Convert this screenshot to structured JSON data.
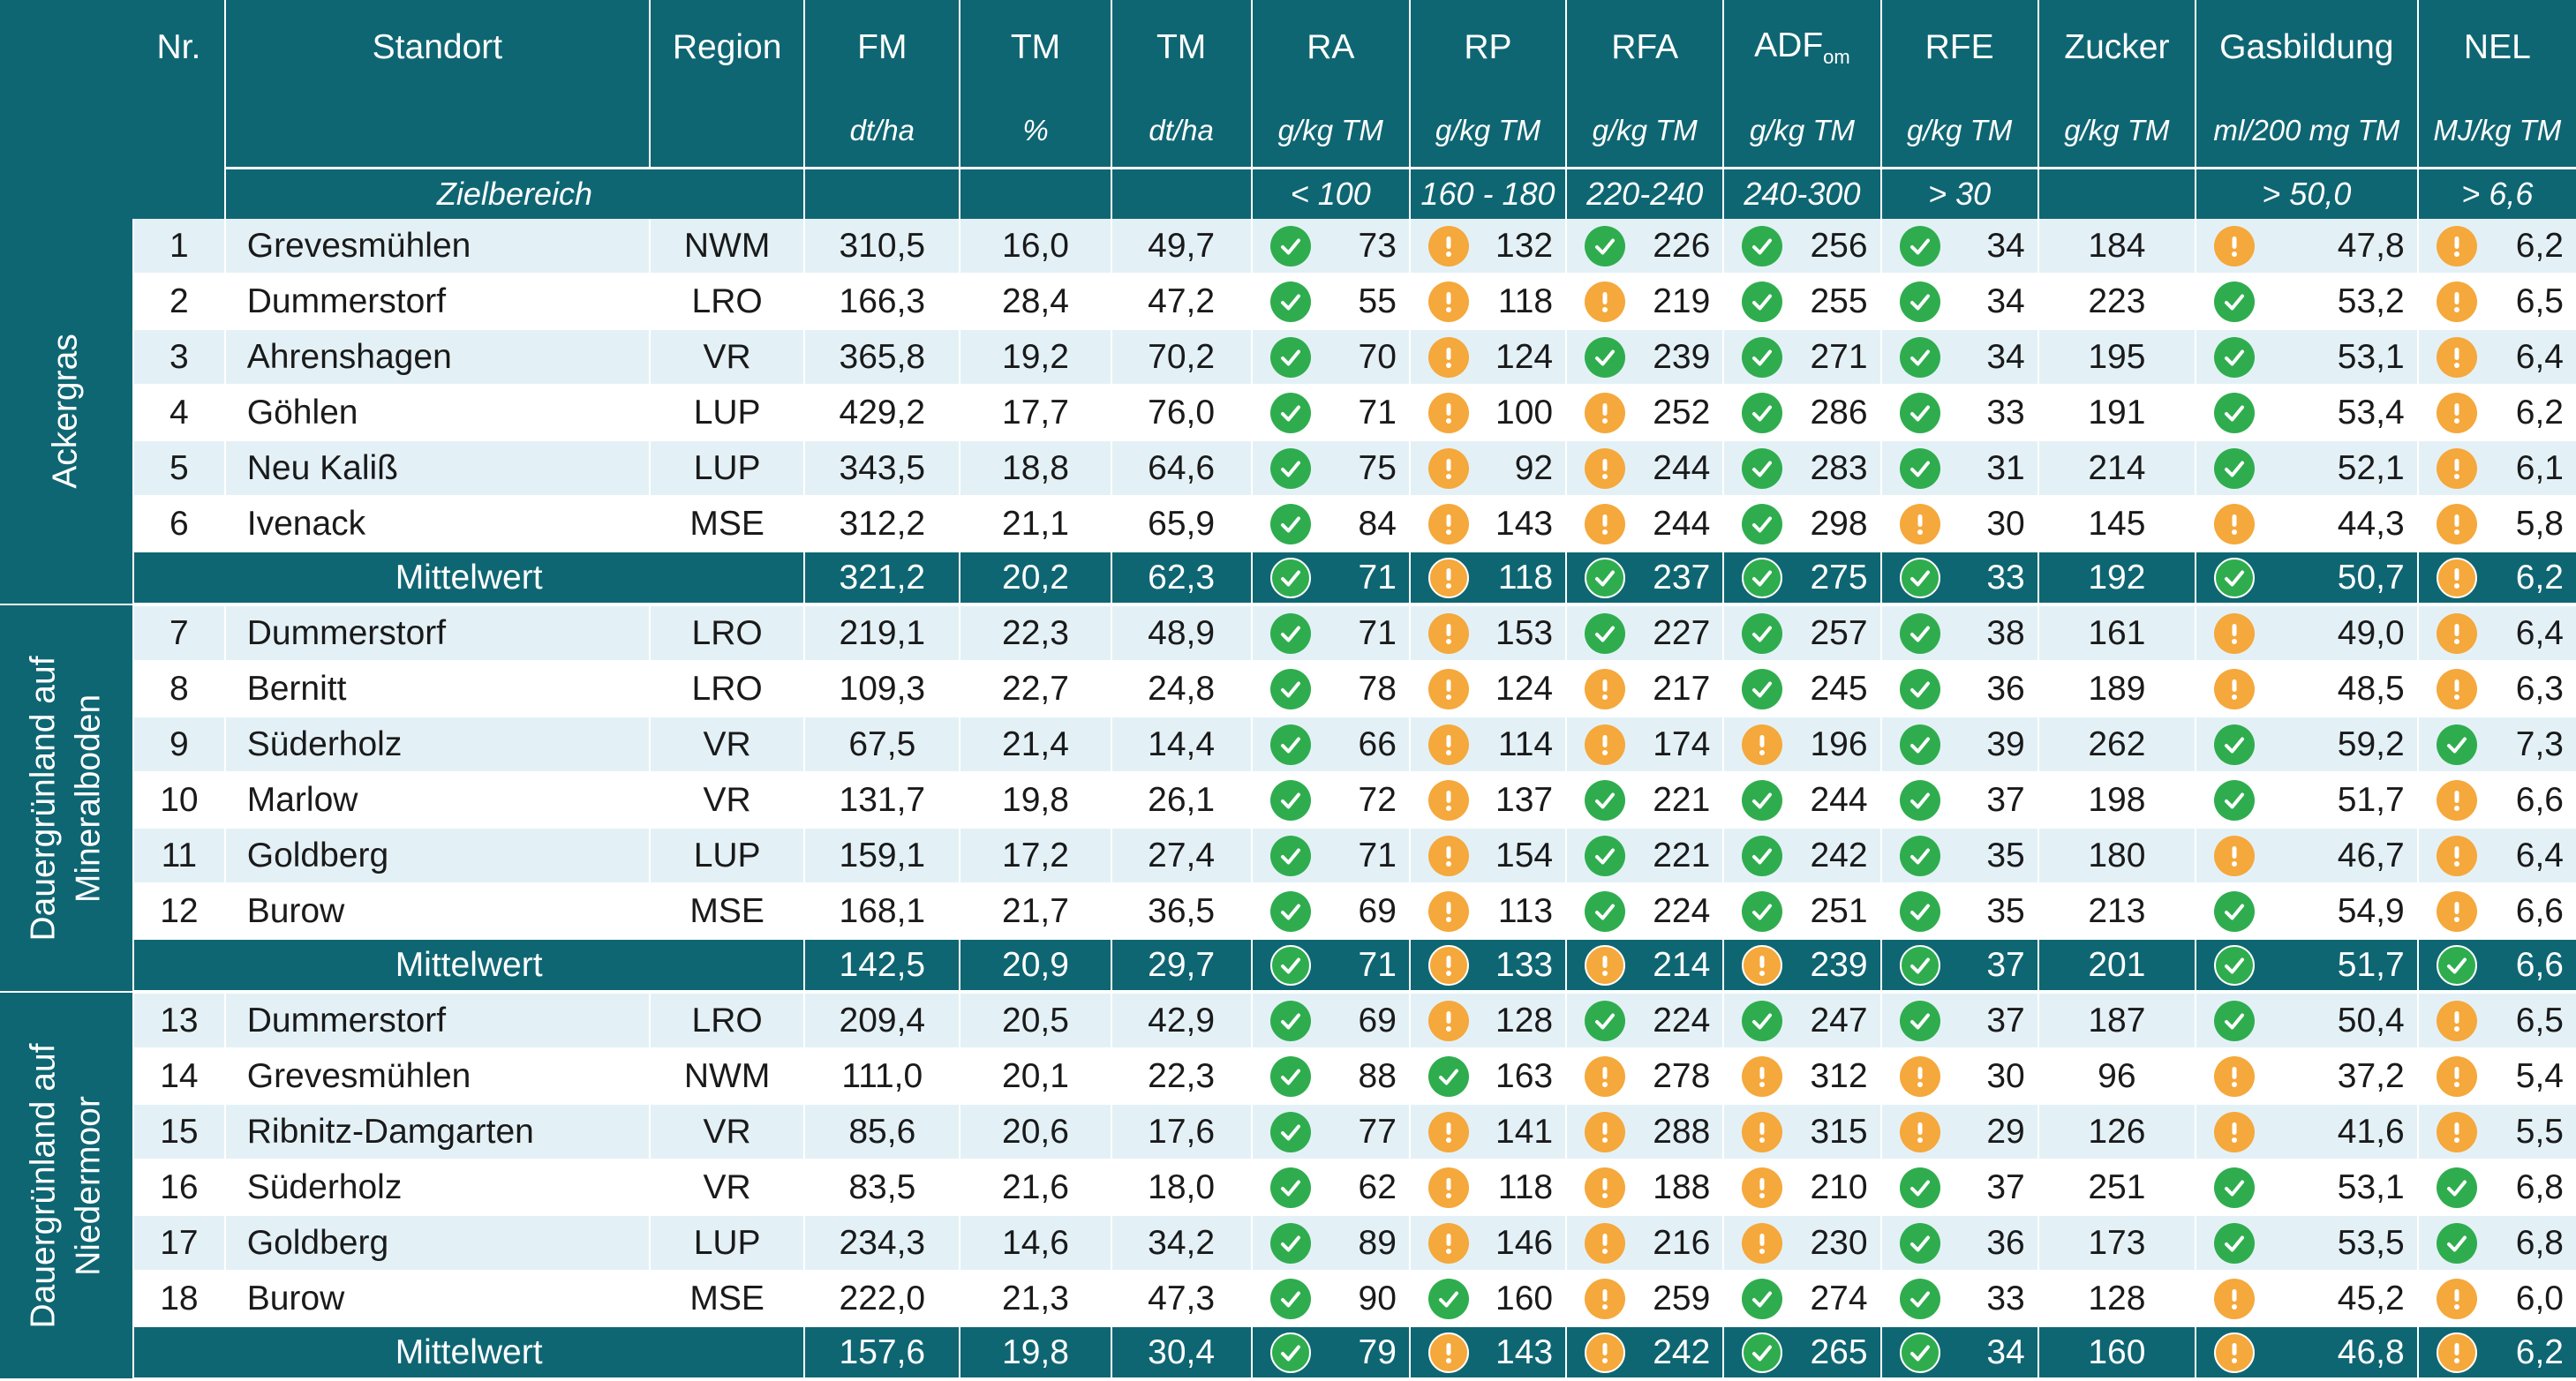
{
  "headers": {
    "nr": "Nr.",
    "standort": "Standort",
    "region": "Region",
    "cols": [
      {
        "name": "FM",
        "sub": "",
        "unit": "dt/ha",
        "target": ""
      },
      {
        "name": "TM",
        "sub": "",
        "unit": "%",
        "target": ""
      },
      {
        "name": "TM",
        "sub": "",
        "unit": "dt/ha",
        "target": ""
      },
      {
        "name": "RA",
        "sub": "",
        "unit": "g/kg TM",
        "target": "< 100"
      },
      {
        "name": "RP",
        "sub": "",
        "unit": "g/kg TM",
        "target": "160 - 180"
      },
      {
        "name": "RFA",
        "sub": "",
        "unit": "g/kg TM",
        "target": "220-240"
      },
      {
        "name": "ADF",
        "sub": "om",
        "unit": "g/kg TM",
        "target": "240-300"
      },
      {
        "name": "RFE",
        "sub": "",
        "unit": "g/kg TM",
        "target": "> 30"
      },
      {
        "name": "Zucker",
        "sub": "",
        "unit": "g/kg TM",
        "target": ""
      },
      {
        "name": "Gasbildung",
        "sub": "",
        "unit": "ml/200 mg TM",
        "target": "> 50,0"
      },
      {
        "name": "NEL",
        "sub": "",
        "unit": "MJ/kg TM",
        "target": "> 6,6"
      }
    ],
    "zielbereich": "Zielbereich"
  },
  "icon_colors": {
    "ok": "#2fad4e",
    "warn": "#f5a83b"
  },
  "groups": [
    {
      "label_lines": [
        "Ackergras"
      ],
      "rows": [
        {
          "nr": "1",
          "standort": "Grevesmühlen",
          "region": "NWM",
          "v": [
            "310,5",
            "16,0",
            "49,7",
            "73",
            "132",
            "226",
            "256",
            "34",
            "184",
            "47,8",
            "6,2"
          ],
          "s": [
            "ok",
            "warn",
            "ok",
            "ok",
            "ok",
            "",
            "warn",
            "warn"
          ]
        },
        {
          "nr": "2",
          "standort": "Dummerstorf",
          "region": "LRO",
          "v": [
            "166,3",
            "28,4",
            "47,2",
            "55",
            "118",
            "219",
            "255",
            "34",
            "223",
            "53,2",
            "6,5"
          ],
          "s": [
            "ok",
            "warn",
            "warn",
            "ok",
            "ok",
            "",
            "ok",
            "warn"
          ]
        },
        {
          "nr": "3",
          "standort": "Ahrenshagen",
          "region": "VR",
          "v": [
            "365,8",
            "19,2",
            "70,2",
            "70",
            "124",
            "239",
            "271",
            "34",
            "195",
            "53,1",
            "6,4"
          ],
          "s": [
            "ok",
            "warn",
            "ok",
            "ok",
            "ok",
            "",
            "ok",
            "warn"
          ]
        },
        {
          "nr": "4",
          "standort": "Göhlen",
          "region": "LUP",
          "v": [
            "429,2",
            "17,7",
            "76,0",
            "71",
            "100",
            "252",
            "286",
            "33",
            "191",
            "53,4",
            "6,2"
          ],
          "s": [
            "ok",
            "warn",
            "warn",
            "ok",
            "ok",
            "",
            "ok",
            "warn"
          ]
        },
        {
          "nr": "5",
          "standort": "Neu Kaliß",
          "region": "LUP",
          "v": [
            "343,5",
            "18,8",
            "64,6",
            "75",
            "92",
            "244",
            "283",
            "31",
            "214",
            "52,1",
            "6,1"
          ],
          "s": [
            "ok",
            "warn",
            "warn",
            "ok",
            "ok",
            "",
            "ok",
            "warn"
          ]
        },
        {
          "nr": "6",
          "standort": "Ivenack",
          "region": "MSE",
          "v": [
            "312,2",
            "21,1",
            "65,9",
            "84",
            "143",
            "244",
            "298",
            "30",
            "145",
            "44,3",
            "5,8"
          ],
          "s": [
            "ok",
            "warn",
            "warn",
            "ok",
            "warn",
            "",
            "warn",
            "warn"
          ]
        }
      ],
      "mean": {
        "label": "Mittelwert",
        "v": [
          "321,2",
          "20,2",
          "62,3",
          "71",
          "118",
          "237",
          "275",
          "33",
          "192",
          "50,7",
          "6,2"
        ],
        "s": [
          "ok",
          "warn",
          "ok",
          "ok",
          "ok",
          "",
          "ok",
          "warn"
        ]
      }
    },
    {
      "label_lines": [
        "Dauergrünland auf",
        "Mineralboden"
      ],
      "rows": [
        {
          "nr": "7",
          "standort": "Dummerstorf",
          "region": "LRO",
          "v": [
            "219,1",
            "22,3",
            "48,9",
            "71",
            "153",
            "227",
            "257",
            "38",
            "161",
            "49,0",
            "6,4"
          ],
          "s": [
            "ok",
            "warn",
            "ok",
            "ok",
            "ok",
            "",
            "warn",
            "warn"
          ]
        },
        {
          "nr": "8",
          "standort": "Bernitt",
          "region": "LRO",
          "v": [
            "109,3",
            "22,7",
            "24,8",
            "78",
            "124",
            "217",
            "245",
            "36",
            "189",
            "48,5",
            "6,3"
          ],
          "s": [
            "ok",
            "warn",
            "warn",
            "ok",
            "ok",
            "",
            "warn",
            "warn"
          ]
        },
        {
          "nr": "9",
          "standort": "Süderholz",
          "region": "VR",
          "v": [
            "67,5",
            "21,4",
            "14,4",
            "66",
            "114",
            "174",
            "196",
            "39",
            "262",
            "59,2",
            "7,3"
          ],
          "s": [
            "ok",
            "warn",
            "warn",
            "warn",
            "ok",
            "",
            "ok",
            "ok"
          ]
        },
        {
          "nr": "10",
          "standort": "Marlow",
          "region": "VR",
          "v": [
            "131,7",
            "19,8",
            "26,1",
            "72",
            "137",
            "221",
            "244",
            "37",
            "198",
            "51,7",
            "6,6"
          ],
          "s": [
            "ok",
            "warn",
            "ok",
            "ok",
            "ok",
            "",
            "ok",
            "warn"
          ]
        },
        {
          "nr": "11",
          "standort": "Goldberg",
          "region": "LUP",
          "v": [
            "159,1",
            "17,2",
            "27,4",
            "71",
            "154",
            "221",
            "242",
            "35",
            "180",
            "46,7",
            "6,4"
          ],
          "s": [
            "ok",
            "warn",
            "ok",
            "ok",
            "ok",
            "",
            "warn",
            "warn"
          ]
        },
        {
          "nr": "12",
          "standort": "Burow",
          "region": "MSE",
          "v": [
            "168,1",
            "21,7",
            "36,5",
            "69",
            "113",
            "224",
            "251",
            "35",
            "213",
            "54,9",
            "6,6"
          ],
          "s": [
            "ok",
            "warn",
            "ok",
            "ok",
            "ok",
            "",
            "ok",
            "warn"
          ]
        }
      ],
      "mean": {
        "label": "Mittelwert",
        "v": [
          "142,5",
          "20,9",
          "29,7",
          "71",
          "133",
          "214",
          "239",
          "37",
          "201",
          "51,7",
          "6,6"
        ],
        "s": [
          "ok",
          "warn",
          "warn",
          "warn",
          "ok",
          "",
          "ok",
          "ok"
        ]
      }
    },
    {
      "label_lines": [
        "Dauergrünland auf",
        "Niedermoor"
      ],
      "rows": [
        {
          "nr": "13",
          "standort": "Dummerstorf",
          "region": "LRO",
          "v": [
            "209,4",
            "20,5",
            "42,9",
            "69",
            "128",
            "224",
            "247",
            "37",
            "187",
            "50,4",
            "6,5"
          ],
          "s": [
            "ok",
            "warn",
            "ok",
            "ok",
            "ok",
            "",
            "ok",
            "warn"
          ]
        },
        {
          "nr": "14",
          "standort": "Grevesmühlen",
          "region": "NWM",
          "v": [
            "111,0",
            "20,1",
            "22,3",
            "88",
            "163",
            "278",
            "312",
            "30",
            "96",
            "37,2",
            "5,4"
          ],
          "s": [
            "ok",
            "ok",
            "warn",
            "warn",
            "warn",
            "",
            "warn",
            "warn"
          ]
        },
        {
          "nr": "15",
          "standort": "Ribnitz-Damgarten",
          "region": "VR",
          "v": [
            "85,6",
            "20,6",
            "17,6",
            "77",
            "141",
            "288",
            "315",
            "29",
            "126",
            "41,6",
            "5,5"
          ],
          "s": [
            "ok",
            "warn",
            "warn",
            "warn",
            "warn",
            "",
            "warn",
            "warn"
          ]
        },
        {
          "nr": "16",
          "standort": "Süderholz",
          "region": "VR",
          "v": [
            "83,5",
            "21,6",
            "18,0",
            "62",
            "118",
            "188",
            "210",
            "37",
            "251",
            "53,1",
            "6,8"
          ],
          "s": [
            "ok",
            "warn",
            "warn",
            "warn",
            "ok",
            "",
            "ok",
            "ok"
          ]
        },
        {
          "nr": "17",
          "standort": "Goldberg",
          "region": "LUP",
          "v": [
            "234,3",
            "14,6",
            "34,2",
            "89",
            "146",
            "216",
            "230",
            "36",
            "173",
            "53,5",
            "6,8"
          ],
          "s": [
            "ok",
            "warn",
            "warn",
            "warn",
            "ok",
            "",
            "ok",
            "ok"
          ]
        },
        {
          "nr": "18",
          "standort": "Burow",
          "region": "MSE",
          "v": [
            "222,0",
            "21,3",
            "47,3",
            "90",
            "160",
            "259",
            "274",
            "33",
            "128",
            "45,2",
            "6,0"
          ],
          "s": [
            "ok",
            "ok",
            "warn",
            "ok",
            "ok",
            "",
            "warn",
            "warn"
          ]
        }
      ],
      "mean": {
        "label": "Mittelwert",
        "v": [
          "157,6",
          "19,8",
          "30,4",
          "79",
          "143",
          "242",
          "265",
          "34",
          "160",
          "46,8",
          "6,2"
        ],
        "s": [
          "ok",
          "warn",
          "warn",
          "ok",
          "ok",
          "",
          "warn",
          "warn"
        ]
      }
    }
  ]
}
